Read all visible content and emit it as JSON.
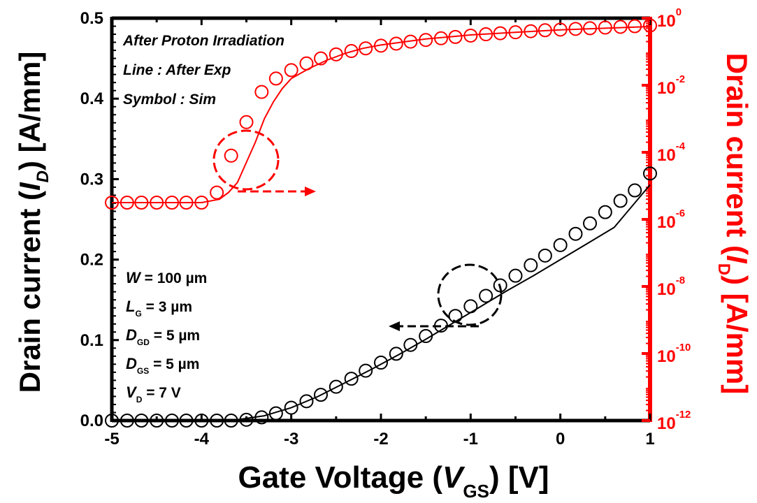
{
  "chart_data": {
    "type": "line",
    "xlabel": {
      "pre": "Gate Voltage (",
      "var": "V",
      "sub": "GS",
      "post": ") [V]"
    },
    "ylabel_left": {
      "pre": "Drain current (",
      "var": "I",
      "sub": "D",
      "post": ") [A/mm]"
    },
    "ylabel_right": {
      "pre": "Drain current (",
      "var": "I",
      "sub": "D",
      "post": ") [A/mm]"
    },
    "xlim": [
      -5,
      1
    ],
    "ylim_left": [
      0,
      0.5
    ],
    "ylim_right_log10": [
      -12,
      0
    ],
    "x_ticks": [
      "-5",
      "-4",
      "-3",
      "-2",
      "-1",
      "0",
      "1"
    ],
    "y_left_ticks": [
      "0.0",
      "0.1",
      "0.2",
      "0.3",
      "0.4",
      "0.5"
    ],
    "y_right_ticks": [
      {
        "base": "10",
        "exp": "0"
      },
      {
        "base": "10",
        "exp": "-2"
      },
      {
        "base": "10",
        "exp": "-4"
      },
      {
        "base": "10",
        "exp": "-6"
      },
      {
        "base": "10",
        "exp": "-8"
      },
      {
        "base": "10",
        "exp": "-10"
      },
      {
        "base": "10",
        "exp": "-12"
      }
    ],
    "legend_notes": [
      "After Proton Irradiation",
      "Line : After Exp",
      "Symbol : Sim"
    ],
    "device_params": [
      {
        "var": "W",
        "sub": "",
        "text": " = 100 µm"
      },
      {
        "var": "L",
        "sub": "G",
        "text": " = 3 µm"
      },
      {
        "var": "D",
        "sub": "GD",
        "text": " = 5 µm"
      },
      {
        "var": "D",
        "sub": "GS",
        "text": " = 5 µm"
      },
      {
        "var": "V",
        "sub": "D",
        "text": " = 7 V"
      }
    ],
    "colors": {
      "linear": "#000000",
      "log": "#ff0000"
    },
    "series": [
      {
        "axis": "left",
        "kind": "line",
        "color": "#000000",
        "x": [
          -5,
          -4,
          -3.6,
          -3.3,
          -3.0,
          -2.7,
          -2.4,
          -2.1,
          -1.8,
          -1.5,
          -1.2,
          -0.9,
          -0.6,
          -0.3,
          0,
          0.3,
          0.6,
          1.0
        ],
        "y": [
          0,
          0,
          0.001,
          0.006,
          0.016,
          0.03,
          0.047,
          0.064,
          0.082,
          0.101,
          0.121,
          0.141,
          0.161,
          0.18,
          0.2,
          0.22,
          0.24,
          0.293
        ]
      },
      {
        "axis": "left",
        "kind": "markers",
        "color": "#000000",
        "x": [
          -5,
          -4.83,
          -4.67,
          -4.5,
          -4.33,
          -4.17,
          -4,
          -3.83,
          -3.67,
          -3.5,
          -3.33,
          -3.17,
          -3,
          -2.83,
          -2.67,
          -2.5,
          -2.33,
          -2.17,
          -2,
          -1.83,
          -1.67,
          -1.5,
          -1.33,
          -1.17,
          -1,
          -0.83,
          -0.67,
          -0.5,
          -0.33,
          -0.17,
          0,
          0.17,
          0.33,
          0.5,
          0.67,
          0.83,
          1.0
        ],
        "y": [
          0,
          0,
          0,
          0,
          0,
          0,
          0,
          0,
          0,
          0.001,
          0.004,
          0.009,
          0.016,
          0.024,
          0.032,
          0.042,
          0.052,
          0.062,
          0.072,
          0.083,
          0.094,
          0.105,
          0.118,
          0.13,
          0.142,
          0.155,
          0.168,
          0.18,
          0.193,
          0.205,
          0.218,
          0.232,
          0.245,
          0.259,
          0.273,
          0.286,
          0.307
        ]
      },
      {
        "axis": "right",
        "kind": "line",
        "color": "#ff0000",
        "x": [
          -5,
          -4,
          -3.8,
          -3.7,
          -3.6,
          -3.5,
          -3.4,
          -3.3,
          -3.2,
          -3.1,
          -3.0,
          -2.8,
          -2.6,
          -2.4,
          -2.2,
          -2.0,
          -1.5,
          -1.0,
          -0.5,
          0,
          0.5,
          1.0
        ],
        "log10_y": [
          -5.5,
          -5.5,
          -5.4,
          -5.2,
          -4.9,
          -4.3,
          -3.7,
          -3.0,
          -2.5,
          -2.1,
          -1.8,
          -1.5,
          -1.25,
          -1.05,
          -0.9,
          -0.8,
          -0.62,
          -0.5,
          -0.42,
          -0.35,
          -0.3,
          -0.25
        ]
      },
      {
        "axis": "right",
        "kind": "markers",
        "color": "#ff0000",
        "x": [
          -5,
          -4.83,
          -4.67,
          -4.5,
          -4.33,
          -4.17,
          -4,
          -3.83,
          -3.67,
          -3.5,
          -3.33,
          -3.17,
          -3,
          -2.83,
          -2.67,
          -2.5,
          -2.33,
          -2.17,
          -2,
          -1.83,
          -1.67,
          -1.5,
          -1.33,
          -1.17,
          -1,
          -0.83,
          -0.67,
          -0.5,
          -0.33,
          -0.17,
          0,
          0.17,
          0.33,
          0.5,
          0.67,
          0.83,
          1.0
        ],
        "log10_y": [
          -5.5,
          -5.5,
          -5.5,
          -5.5,
          -5.5,
          -5.5,
          -5.5,
          -5.2,
          -4.1,
          -3.1,
          -2.2,
          -1.8,
          -1.55,
          -1.35,
          -1.2,
          -1.08,
          -0.98,
          -0.9,
          -0.82,
          -0.76,
          -0.7,
          -0.65,
          -0.6,
          -0.56,
          -0.52,
          -0.48,
          -0.45,
          -0.42,
          -0.39,
          -0.36,
          -0.34,
          -0.32,
          -0.3,
          -0.28,
          -0.26,
          -0.24,
          -0.22
        ]
      }
    ]
  }
}
